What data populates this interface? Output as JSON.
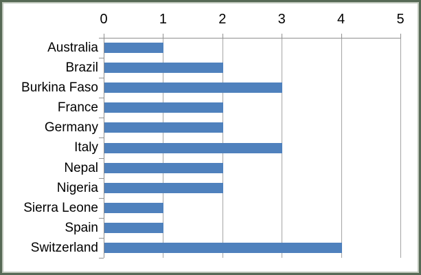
{
  "chart_data": {
    "type": "bar",
    "orientation": "horizontal",
    "title": "",
    "xlabel": "",
    "ylabel": "",
    "categories": [
      "Australia",
      "Brazil",
      "Burkina Faso",
      "France",
      "Germany",
      "Italy",
      "Nepal",
      "Nigeria",
      "Sierra Leone",
      "Spain",
      "Switzerland"
    ],
    "values": [
      1,
      2,
      3,
      2,
      2,
      3,
      2,
      2,
      1,
      1,
      4
    ],
    "x_ticks": [
      "0",
      "1",
      "2",
      "3",
      "4",
      "5"
    ],
    "xlim": [
      0,
      5
    ],
    "grid": "vertical gridlines at each integer tick",
    "axis_position": "value axis on top, category axis on left",
    "legend": "none"
  },
  "colors": {
    "bar": "#4f81bd",
    "gridline": "#a3a3a3",
    "axis": "#8e8e8e",
    "text": "#000000",
    "frame_border": "#566955",
    "frame_inner_edge": "#bfc7bb",
    "background": "#ffffff"
  }
}
